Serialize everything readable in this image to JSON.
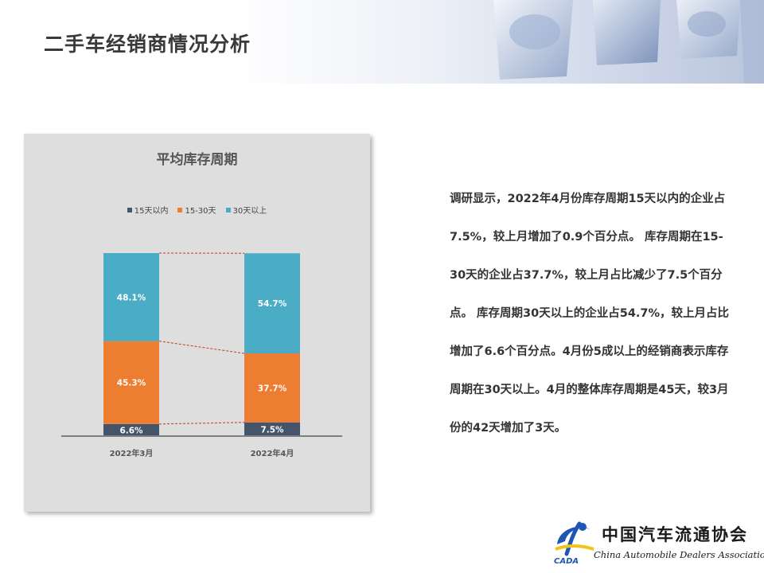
{
  "page": {
    "title": "二手车经销商情况分析"
  },
  "description": "调研显示，2022年4月份库存周期15天以内的企业占7.5%，较上月增加了0.9个百分点。 库存周期在15-30天的企业占37.7%，较上月占比减少了7.5个百分点。 库存周期30天以上的企业占54.7%，较上月占比增加了6.6个百分点。4月份5成以上的经销商表示库存周期在30天以上。4月的整体库存周期是45天，较3月份的42天增加了3天。",
  "logo": {
    "abbr": "CADA",
    "name_cn": "中国汽车流通协会",
    "name_en": "China Automobile Dealers Association"
  },
  "chart_data": {
    "type": "bar",
    "stacked": true,
    "title": "平均库存周期",
    "categories": [
      "2022年3月",
      "2022年4月"
    ],
    "series": [
      {
        "name": "15天以内",
        "values": [
          6.6,
          7.5
        ],
        "labels": [
          "6.6%",
          "7.5%"
        ],
        "color": "#44546a"
      },
      {
        "name": "15-30天",
        "values": [
          45.3,
          37.7
        ],
        "labels": [
          "45.3%",
          "37.7%"
        ],
        "color": "#ed7d31"
      },
      {
        "name": "30天以上",
        "values": [
          48.1,
          54.7
        ],
        "labels": [
          "48.1%",
          "54.7%"
        ],
        "color": "#4bacc6"
      }
    ],
    "ylim": [
      0,
      100
    ],
    "legend_position": "top",
    "series_lines": true,
    "series_line_color": "#c0392b"
  }
}
